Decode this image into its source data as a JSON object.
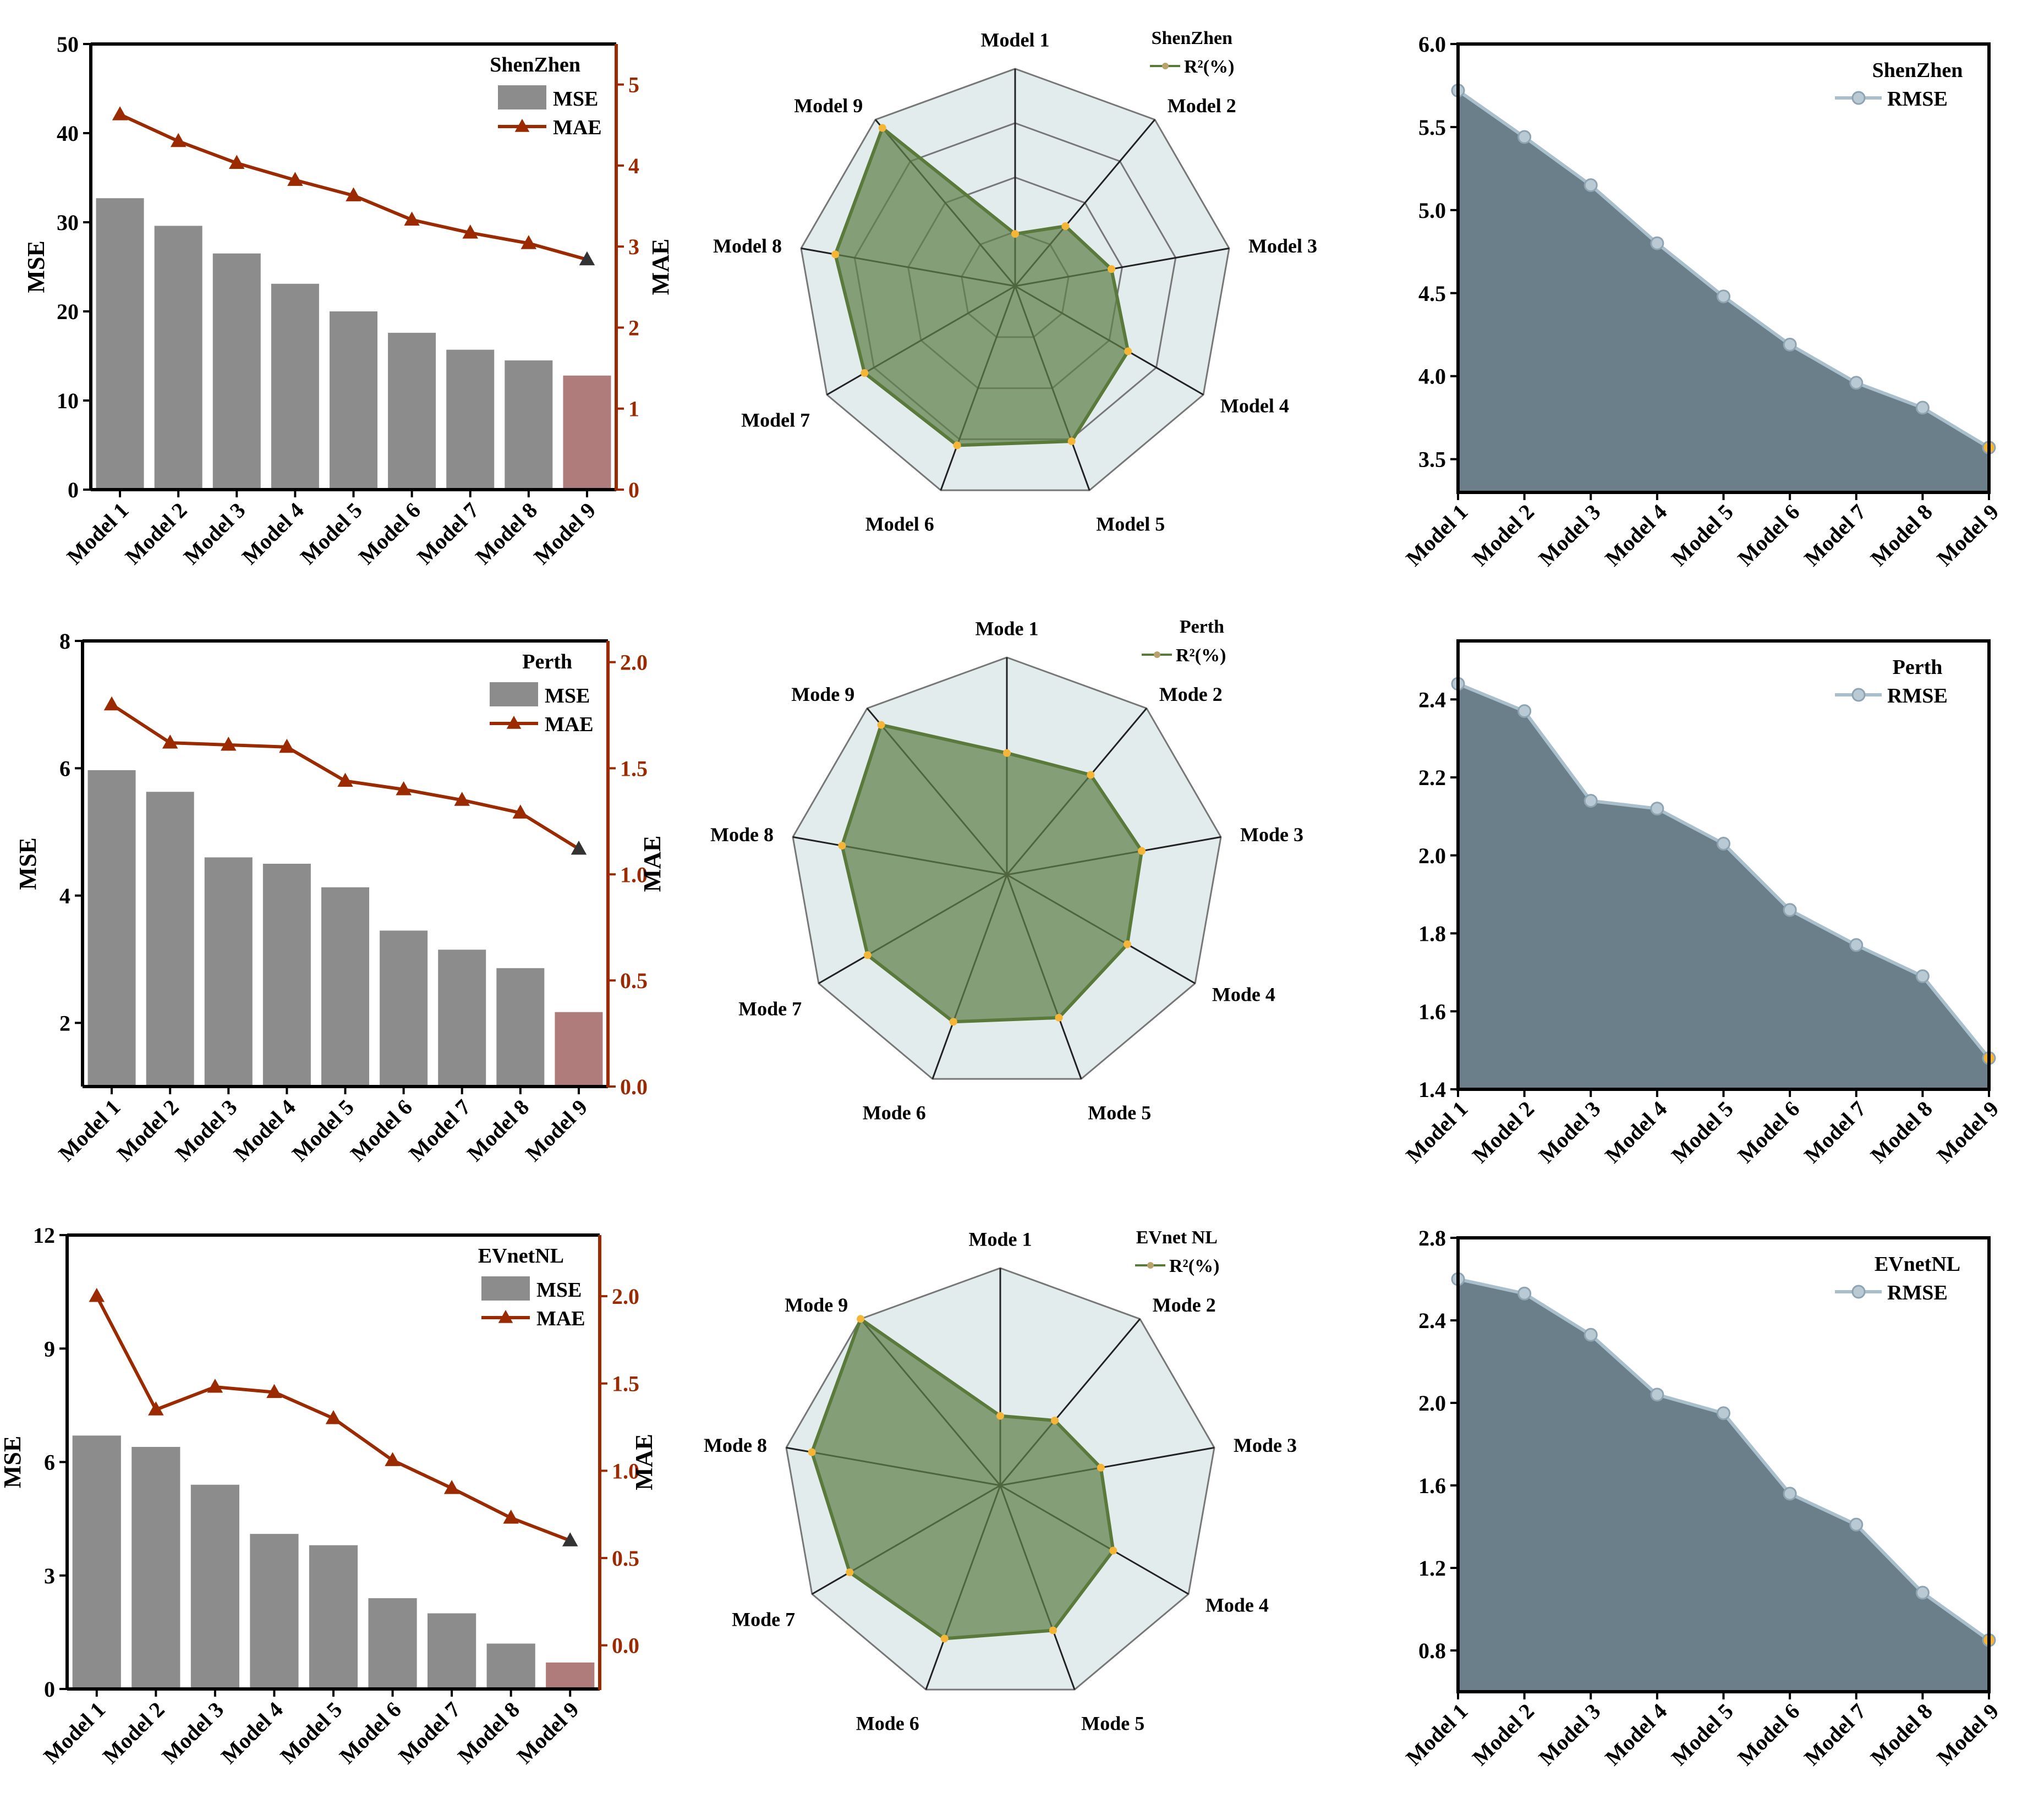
{
  "styles": {
    "bar_color": "#8c8c8c",
    "highlight_bar_color": "#b07b7b",
    "mae_color": "#9b2a00",
    "mae_last_marker_color": "#333333",
    "radar_fill": "#5f7f4a",
    "radar_bg": "#e2ecec",
    "radar_marker": "#f5b638",
    "rmse_fill": "#6a7f8a",
    "rmse_line": "#a9bfcc",
    "rmse_last_marker": "#f5b638"
  },
  "chart_data": [
    {
      "id": "bar-shenzhen",
      "type": "bar",
      "legend_title": "ShenZhen",
      "categories": [
        "Model 1",
        "Model 2",
        "Model 3",
        "Model 4",
        "Model 5",
        "Model 6",
        "Model 7",
        "Model 8",
        "Model 9"
      ],
      "series": [
        {
          "name": "MSE",
          "axis": "left",
          "values": [
            32.7,
            29.6,
            26.5,
            23.1,
            20.0,
            17.6,
            15.7,
            14.5,
            12.8
          ]
        },
        {
          "name": "MAE",
          "axis": "right",
          "values": [
            4.63,
            4.3,
            4.03,
            3.82,
            3.63,
            3.33,
            3.17,
            3.04,
            2.84
          ]
        }
      ],
      "ylabel": "MSE",
      "y2label": "MAE",
      "ylim": [
        0,
        50
      ],
      "yticks": [
        "0",
        "10",
        "20",
        "30",
        "40",
        "50"
      ],
      "ytick_values": [
        0,
        10,
        20,
        30,
        40,
        50
      ],
      "y2lim": [
        0,
        5.5
      ],
      "y2ticks": [
        "0",
        "1",
        "2",
        "3",
        "4",
        "5"
      ],
      "y2tick_values": [
        0,
        1,
        2,
        3,
        4,
        5
      ]
    },
    {
      "id": "radar-shenzhen",
      "type": "radar",
      "legend_title": "ShenZhen",
      "series_name": "R²(%)",
      "labels": [
        "Model 1",
        "Model 2",
        "Model 3",
        "Model 4",
        "Model 5",
        "Model 6",
        "Model 7",
        "Model 8",
        "Model 9"
      ],
      "values": [
        0.24,
        0.36,
        0.45,
        0.6,
        0.76,
        0.78,
        0.8,
        0.84,
        0.95
      ],
      "rings": 4
    },
    {
      "id": "area-shenzhen",
      "type": "area",
      "legend_title": "ShenZhen",
      "series_name": "RMSE",
      "categories": [
        "Model 1",
        "Model 2",
        "Model 3",
        "Model 4",
        "Model 5",
        "Model 6",
        "Model 7",
        "Model 8",
        "Model 9"
      ],
      "values": [
        5.72,
        5.44,
        5.15,
        4.8,
        4.48,
        4.19,
        3.96,
        3.81,
        3.57
      ],
      "ylim": [
        3.3,
        6.0
      ],
      "yticks": [
        "3.5",
        "4.0",
        "4.5",
        "5.0",
        "5.5",
        "6.0"
      ],
      "ytick_values": [
        3.5,
        4.0,
        4.5,
        5.0,
        5.5,
        6.0
      ]
    },
    {
      "id": "bar-perth",
      "type": "bar",
      "legend_title": "Perth",
      "categories": [
        "Model 1",
        "Model 2",
        "Model 3",
        "Model 4",
        "Model 5",
        "Model 6",
        "Model 7",
        "Model 8",
        "Model 9"
      ],
      "series": [
        {
          "name": "MSE",
          "axis": "left",
          "values": [
            5.97,
            5.63,
            4.6,
            4.5,
            4.13,
            3.45,
            3.15,
            2.86,
            2.17
          ]
        },
        {
          "name": "MAE",
          "axis": "right",
          "values": [
            1.8,
            1.62,
            1.61,
            1.6,
            1.44,
            1.4,
            1.35,
            1.29,
            1.12
          ]
        }
      ],
      "ylabel": "MSE",
      "y2label": "MAE",
      "ylim": [
        1,
        8
      ],
      "yticks": [
        "2",
        "4",
        "6",
        "8"
      ],
      "ytick_values": [
        2,
        4,
        6,
        8
      ],
      "y2lim": [
        0,
        2.1
      ],
      "y2ticks": [
        "0.0",
        "0.5",
        "1.0",
        "1.5",
        "2.0"
      ],
      "y2tick_values": [
        0,
        0.5,
        1.0,
        1.5,
        2.0
      ]
    },
    {
      "id": "radar-perth",
      "type": "radar",
      "legend_title": "Perth",
      "series_name": "R²(%)",
      "labels": [
        "Mode 1",
        "Mode 2",
        "Mode 3",
        "Mode 4",
        "Mode 5",
        "Mode 6",
        "Mode 7",
        "Mode 8",
        "Mode 9"
      ],
      "values": [
        0.56,
        0.6,
        0.63,
        0.64,
        0.7,
        0.72,
        0.74,
        0.77,
        0.9
      ],
      "rings": 0
    },
    {
      "id": "area-perth",
      "type": "area",
      "legend_title": "Perth",
      "series_name": "RMSE",
      "categories": [
        "Model 1",
        "Model 2",
        "Model 3",
        "Model 4",
        "Model 5",
        "Model 6",
        "Model 7",
        "Model 8",
        "Model 9"
      ],
      "values": [
        2.44,
        2.37,
        2.14,
        2.12,
        2.03,
        1.86,
        1.77,
        1.69,
        1.48
      ],
      "ylim": [
        1.4,
        2.55
      ],
      "yticks": [
        "1.4",
        "1.6",
        "1.8",
        "2.0",
        "2.2",
        "2.4"
      ],
      "ytick_values": [
        1.4,
        1.6,
        1.8,
        2.0,
        2.2,
        2.4
      ]
    },
    {
      "id": "bar-evnetnl",
      "type": "bar",
      "legend_title": "EVnetNL",
      "categories": [
        "Model 1",
        "Model 2",
        "Model 3",
        "Model 4",
        "Model 5",
        "Model 6",
        "Model 7",
        "Model 8",
        "Model 9"
      ],
      "series": [
        {
          "name": "MSE",
          "axis": "left",
          "values": [
            6.7,
            6.4,
            5.4,
            4.1,
            3.8,
            2.4,
            2.0,
            1.2,
            0.7
          ]
        },
        {
          "name": "MAE",
          "axis": "right",
          "values": [
            2.0,
            1.35,
            1.48,
            1.45,
            1.3,
            1.06,
            0.9,
            0.73,
            0.6
          ]
        }
      ],
      "ylabel": "MSE",
      "y2label": "MAE",
      "ylim": [
        0,
        12
      ],
      "yticks": [
        "0",
        "3",
        "6",
        "9",
        "12"
      ],
      "ytick_values": [
        0,
        3,
        6,
        9,
        12
      ],
      "y2lim": [
        -0.25,
        2.35
      ],
      "y2ticks": [
        "0.0",
        "0.5",
        "1.0",
        "1.5",
        "2.0"
      ],
      "y2tick_values": [
        0,
        0.5,
        1.0,
        1.5,
        2.0
      ]
    },
    {
      "id": "radar-evnetnl",
      "type": "radar",
      "legend_title": "EVnet NL",
      "series_name": "R²(%)",
      "labels": [
        "Mode 1",
        "Mode 2",
        "Mode 3",
        "Mode 4",
        "Mode 5",
        "Mode 6",
        "Mode 7",
        "Mode 8",
        "Mode 9"
      ],
      "values": [
        0.32,
        0.39,
        0.47,
        0.6,
        0.71,
        0.75,
        0.8,
        0.88,
        1.0
      ],
      "rings": 0
    },
    {
      "id": "area-evnetnl",
      "type": "area",
      "legend_title": "EVnetNL",
      "series_name": "RMSE",
      "categories": [
        "Model 1",
        "Model 2",
        "Model 3",
        "Model 4",
        "Model 5",
        "Model 6",
        "Model 7",
        "Model 8",
        "Model 9"
      ],
      "values": [
        2.6,
        2.53,
        2.33,
        2.04,
        1.95,
        1.56,
        1.41,
        1.08,
        0.85
      ],
      "ylim": [
        0.6,
        2.8
      ],
      "yticks": [
        "0.8",
        "1.2",
        "1.6",
        "2.0",
        "2.4",
        "2.8"
      ],
      "ytick_values": [
        0.8,
        1.2,
        1.6,
        2.0,
        2.4,
        2.8
      ]
    }
  ]
}
